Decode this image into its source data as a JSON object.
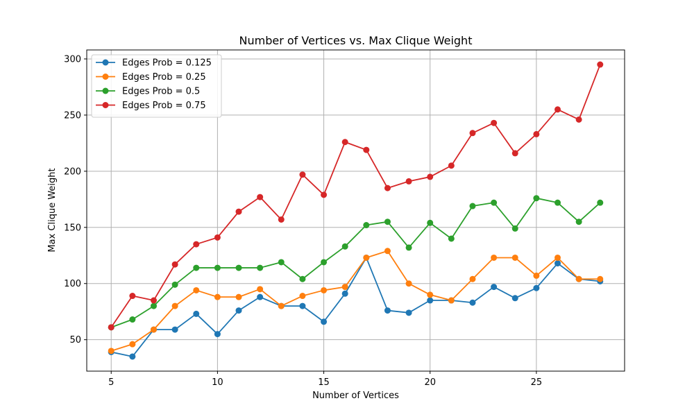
{
  "chart_data": {
    "type": "line",
    "title": "Number of Vertices vs. Max Clique Weight",
    "xlabel": "Number of Vertices",
    "ylabel": "Max Clique Weight",
    "xlim": [
      3.85,
      29.15
    ],
    "ylim": [
      22,
      308
    ],
    "xticks": [
      5,
      10,
      15,
      20,
      25
    ],
    "yticks": [
      50,
      100,
      150,
      200,
      250,
      300
    ],
    "grid": true,
    "legend_position": "upper-left",
    "x": [
      5,
      6,
      7,
      8,
      9,
      10,
      11,
      12,
      13,
      14,
      15,
      16,
      17,
      18,
      19,
      20,
      21,
      22,
      23,
      24,
      25,
      26,
      27,
      28
    ],
    "series": [
      {
        "name": "Edges Prob = 0.125",
        "color": "#1f77b4",
        "values": [
          39,
          35,
          59,
          59,
          73,
          55,
          76,
          88,
          80,
          80,
          66,
          91,
          123,
          76,
          74,
          85,
          85,
          83,
          97,
          87,
          96,
          118,
          104,
          102
        ]
      },
      {
        "name": "Edges Prob = 0.25",
        "color": "#ff7f0e",
        "values": [
          40,
          46,
          59,
          80,
          94,
          88,
          88,
          95,
          80,
          89,
          94,
          97,
          123,
          129,
          100,
          90,
          85,
          104,
          123,
          123,
          107,
          123,
          104,
          104
        ]
      },
      {
        "name": "Edges Prob = 0.5",
        "color": "#2ca02c",
        "values": [
          61,
          68,
          80,
          99,
          114,
          114,
          114,
          114,
          119,
          104,
          119,
          133,
          152,
          155,
          132,
          154,
          140,
          169,
          172,
          149,
          176,
          172,
          155,
          172
        ]
      },
      {
        "name": "Edges Prob = 0.75",
        "color": "#d62728",
        "values": [
          61,
          89,
          85,
          117,
          135,
          141,
          164,
          177,
          157,
          197,
          179,
          226,
          219,
          185,
          191,
          195,
          205,
          234,
          243,
          216,
          233,
          255,
          246,
          295
        ]
      }
    ]
  }
}
